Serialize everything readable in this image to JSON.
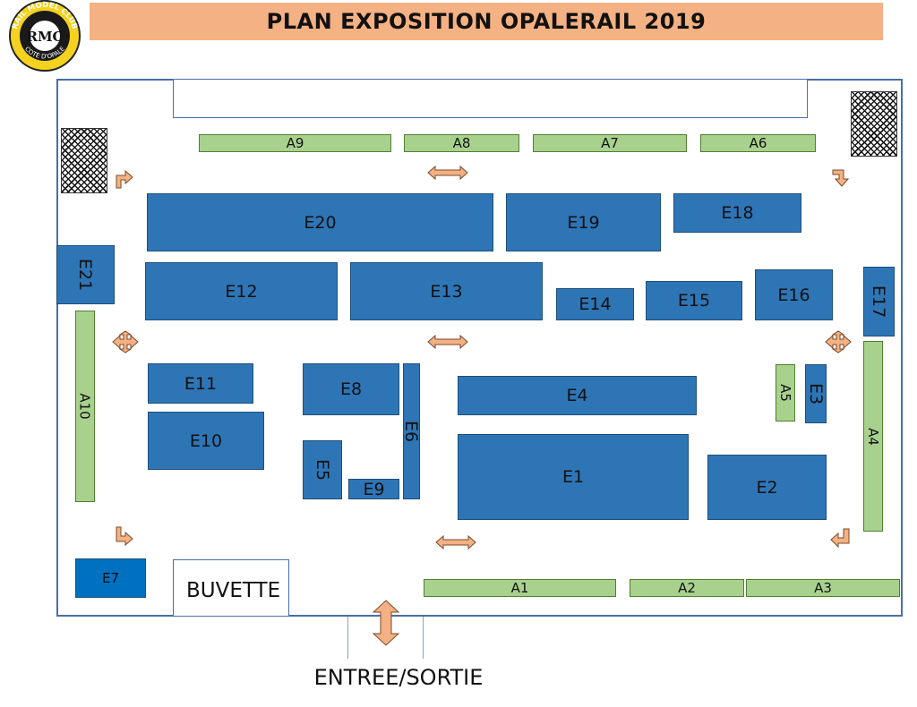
{
  "title": "PLAN EXPOSITION OPALERAIL 2019",
  "logo": {
    "top_text": "RAIL MODEL CLUB",
    "center_text": "RMC",
    "bottom_text": "COTE D'OPALE"
  },
  "buvette_label": "BUVETTE",
  "entrance_label": "ENTREE/SORTIE",
  "colors": {
    "title_band": "#f4b183",
    "exhibitor": "#2e75b6",
    "exhibitor_highlight": "#0070c0",
    "stand": "#a9d18e",
    "arrow": "#f4b183",
    "hall_border": "#4a6ea8"
  },
  "exhibitors": [
    {
      "label": "E1"
    },
    {
      "label": "E2"
    },
    {
      "label": "E3"
    },
    {
      "label": "E4"
    },
    {
      "label": "E5"
    },
    {
      "label": "E6"
    },
    {
      "label": "E7"
    },
    {
      "label": "E8"
    },
    {
      "label": "E9"
    },
    {
      "label": "E10"
    },
    {
      "label": "E11"
    },
    {
      "label": "E12"
    },
    {
      "label": "E13"
    },
    {
      "label": "E14"
    },
    {
      "label": "E15"
    },
    {
      "label": "E16"
    },
    {
      "label": "E17"
    },
    {
      "label": "E18"
    },
    {
      "label": "E19"
    },
    {
      "label": "E20"
    },
    {
      "label": "E21"
    }
  ],
  "stands": [
    {
      "label": "A1"
    },
    {
      "label": "A2"
    },
    {
      "label": "A3"
    },
    {
      "label": "A4"
    },
    {
      "label": "A5"
    },
    {
      "label": "A6"
    },
    {
      "label": "A7"
    },
    {
      "label": "A8"
    },
    {
      "label": "A9"
    },
    {
      "label": "A10"
    }
  ]
}
